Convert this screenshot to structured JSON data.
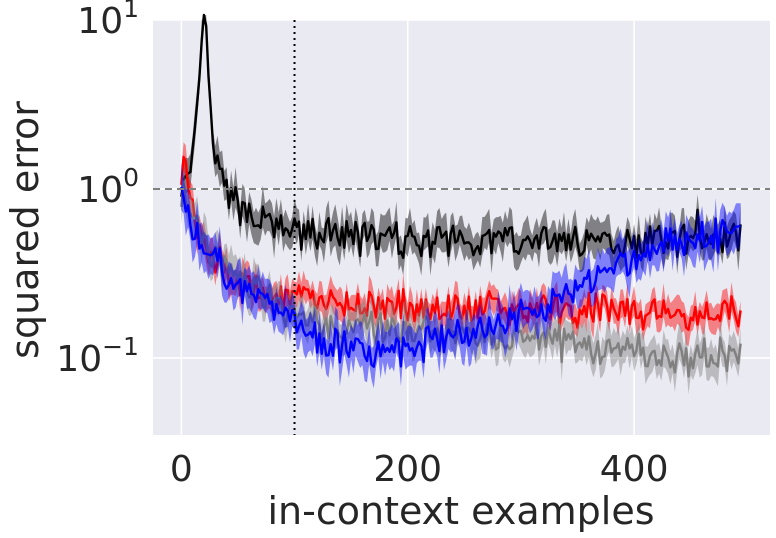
{
  "chart_data": {
    "type": "line",
    "title": "",
    "xlabel": "in-context examples",
    "ylabel": "squared error",
    "xlim": [
      -25,
      520
    ],
    "ylim": [
      0.035,
      10
    ],
    "yscale": "log",
    "grid": true,
    "legend": "none",
    "background": "#eaeaf2",
    "x_ticks": [
      {
        "value": 0,
        "label": "0"
      },
      {
        "value": 200,
        "label": "200"
      },
      {
        "value": 400,
        "label": "400"
      }
    ],
    "y_ticks": [
      {
        "value": 0.1,
        "base": "10",
        "exp": "−1"
      },
      {
        "value": 1,
        "base": "10",
        "exp": "0"
      },
      {
        "value": 10,
        "base": "10",
        "exp": "1"
      }
    ],
    "reference_lines": [
      {
        "orientation": "horizontal",
        "value": 1.0,
        "style": "dashed",
        "color": "#808080"
      },
      {
        "orientation": "vertical",
        "value": 100,
        "style": "dotted",
        "color": "#000000"
      }
    ],
    "series": [
      {
        "color": "#000000",
        "band_opacity": 0.45,
        "x": [
          0,
          5,
          10,
          15,
          18,
          20,
          22,
          25,
          30,
          40,
          50,
          60,
          75,
          100,
          125,
          150,
          200,
          250,
          300,
          350,
          400,
          450,
          455,
          460,
          480,
          495
        ],
        "y": [
          1.0,
          1.1,
          1.4,
          3.0,
          8.0,
          15.0,
          9.0,
          3.0,
          1.5,
          0.95,
          0.8,
          0.72,
          0.62,
          0.55,
          0.54,
          0.52,
          0.5,
          0.5,
          0.5,
          0.5,
          0.49,
          0.5,
          0.75,
          0.5,
          0.52,
          0.55
        ],
        "band": 1.25
      },
      {
        "color": "#ff0000",
        "band_opacity": 0.45,
        "x": [
          0,
          3,
          5,
          10,
          15,
          25,
          40,
          60,
          80,
          100,
          150,
          200,
          250,
          300,
          350,
          400,
          450,
          495
        ],
        "y": [
          1.0,
          1.7,
          1.3,
          0.85,
          0.6,
          0.42,
          0.32,
          0.26,
          0.23,
          0.22,
          0.21,
          0.2,
          0.2,
          0.19,
          0.19,
          0.19,
          0.18,
          0.19
        ],
        "band": 1.2
      },
      {
        "color": "#808080",
        "band_opacity": 0.45,
        "x": [
          0,
          5,
          10,
          20,
          40,
          60,
          80,
          100,
          150,
          200,
          250,
          300,
          350,
          400,
          450,
          495
        ],
        "y": [
          0.95,
          0.9,
          0.7,
          0.5,
          0.35,
          0.27,
          0.22,
          0.18,
          0.15,
          0.14,
          0.14,
          0.13,
          0.12,
          0.11,
          0.1,
          0.105
        ],
        "band": 1.25
      },
      {
        "color": "#0000ff",
        "band_opacity": 0.45,
        "x": [
          0,
          5,
          10,
          20,
          40,
          60,
          80,
          100,
          130,
          160,
          200,
          240,
          280,
          300,
          320,
          340,
          360,
          380,
          400,
          420,
          440,
          460,
          480,
          495
        ],
        "y": [
          0.9,
          0.75,
          0.6,
          0.45,
          0.32,
          0.25,
          0.2,
          0.16,
          0.12,
          0.11,
          0.11,
          0.13,
          0.16,
          0.18,
          0.19,
          0.25,
          0.3,
          0.35,
          0.38,
          0.45,
          0.5,
          0.52,
          0.55,
          0.55
        ],
        "band": 1.3
      }
    ]
  }
}
